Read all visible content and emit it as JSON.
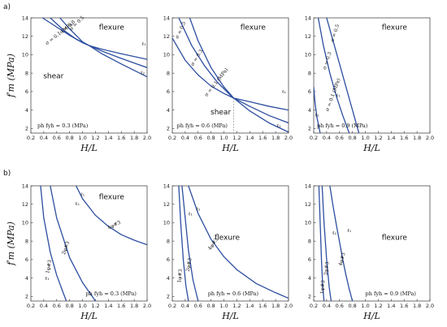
{
  "figure": {
    "row_labels": [
      "a)",
      "b)"
    ],
    "ylabel": "f′m (MPa)",
    "xlabel": "H/L",
    "xticks": [
      0.2,
      0.4,
      0.6,
      0.8,
      1.0,
      1.2,
      1.4,
      1.6,
      1.8,
      2.0
    ],
    "yticks": [
      2,
      4,
      6,
      8,
      10,
      12,
      14
    ]
  },
  "chart_data": [
    {
      "type": "line",
      "row": "a",
      "col": 0,
      "xlim": [
        0.2,
        2.0
      ],
      "ylim": [
        1.5,
        14
      ],
      "annotation": "ph fyh = 0.3 (MPa)",
      "regions": [
        {
          "text": "flexure",
          "x": 1.45,
          "y": 13.0
        },
        {
          "text": "shear",
          "x": 0.55,
          "y": 7.7
        }
      ],
      "series": [
        {
          "name": "σ = 0.1 (MPa)",
          "x": [
            0.38,
            0.6,
            0.8,
            1.0,
            1.1,
            1.3,
            1.6,
            2.0
          ],
          "y": [
            14.0,
            13.0,
            12.1,
            11.3,
            11.0,
            10.6,
            10.1,
            9.5
          ]
        },
        {
          "name": "σ = 0.3",
          "x": [
            0.5,
            0.7,
            0.9,
            1.1,
            1.3,
            1.6,
            2.0
          ],
          "y": [
            14.0,
            12.7,
            11.7,
            11.0,
            10.4,
            9.6,
            8.6
          ]
        },
        {
          "name": "σ = 0.5",
          "x": [
            0.65,
            0.8,
            1.0,
            1.1,
            1.3,
            1.6,
            2.0
          ],
          "y": [
            14.0,
            12.8,
            11.4,
            11.0,
            10.1,
            9.0,
            7.6
          ]
        }
      ],
      "marks": [
        "ℓ₁",
        "ℓ₂"
      ]
    },
    {
      "type": "line",
      "row": "a",
      "col": 1,
      "xlim": [
        0.2,
        2.0
      ],
      "ylim": [
        1.5,
        14
      ],
      "annotation": "ph fyh = 0.6 (MPa)",
      "regions": [
        {
          "text": "flexure",
          "x": 1.45,
          "y": 13.0
        },
        {
          "text": "shear",
          "x": 0.95,
          "y": 3.8
        }
      ],
      "series": [
        {
          "name": "σ = 0.1 (MPa)",
          "x": [
            0.2,
            0.4,
            0.6,
            0.8,
            1.0,
            1.15,
            1.4,
            1.7,
            2.0
          ],
          "y": [
            11.8,
            9.4,
            7.8,
            6.6,
            5.8,
            5.3,
            4.9,
            4.4,
            4.0
          ]
        },
        {
          "name": "σ = 0.3",
          "x": [
            0.3,
            0.5,
            0.7,
            0.9,
            1.1,
            1.15,
            1.4,
            1.7,
            2.0
          ],
          "y": [
            14.0,
            11.0,
            8.8,
            7.0,
            5.6,
            5.3,
            4.4,
            3.4,
            2.6
          ]
        },
        {
          "name": "σ = 0.5",
          "x": [
            0.47,
            0.6,
            0.8,
            1.0,
            1.15,
            1.4,
            1.7,
            2.0
          ],
          "y": [
            14.0,
            11.5,
            8.6,
            6.5,
            5.3,
            3.9,
            2.6,
            1.6
          ]
        }
      ],
      "marks": [
        "ℓ₁",
        "ℓ₂"
      ],
      "guide_x": 1.15
    },
    {
      "type": "line",
      "row": "a",
      "col": 2,
      "xlim": [
        0.2,
        2.0
      ],
      "ylim": [
        1.5,
        14
      ],
      "annotation": "ph fyh = 0.9 (MPa)",
      "regions": [
        {
          "text": "flexure",
          "x": 1.45,
          "y": 13.0
        }
      ],
      "series": [
        {
          "name": "σ = 0.1 (MPa)",
          "x": [
            0.2,
            0.22,
            0.25,
            0.3
          ],
          "y": [
            6.5,
            4.8,
            3.2,
            1.5
          ]
        },
        {
          "name": "σ = 0.3",
          "x": [
            0.27,
            0.35,
            0.45,
            0.55,
            0.65,
            0.75
          ],
          "y": [
            14.0,
            11.0,
            8.0,
            5.5,
            3.4,
            1.5
          ]
        },
        {
          "name": "σ = 0.5",
          "x": [
            0.4,
            0.5,
            0.6,
            0.7,
            0.8,
            0.9
          ],
          "y": [
            14.0,
            11.5,
            9.0,
            6.5,
            4.0,
            1.5
          ]
        }
      ],
      "marks": [
        "ℓ₁",
        "ℓ₂"
      ]
    },
    {
      "type": "line",
      "row": "b",
      "col": 0,
      "xlim": [
        0.2,
        2.0
      ],
      "ylim": [
        1.5,
        14
      ],
      "annotation": "ph fyh = 0.3 (MPa)",
      "regions": [
        {
          "text": "flexure",
          "x": 1.45,
          "y": 12.8
        }
      ],
      "series": [
        {
          "name": "1φ#3",
          "x": [
            0.35,
            0.4,
            0.5,
            0.6,
            0.7,
            0.75
          ],
          "y": [
            14.0,
            10.5,
            6.8,
            4.3,
            2.4,
            1.5
          ]
        },
        {
          "name": "2φ#3",
          "x": [
            0.5,
            0.6,
            0.8,
            1.0,
            1.2
          ],
          "y": [
            14.0,
            10.5,
            6.2,
            3.5,
            1.5
          ]
        },
        {
          "name": "4φ#3",
          "x": [
            0.9,
            1.0,
            1.2,
            1.4,
            1.6,
            1.8,
            2.0
          ],
          "y": [
            14.0,
            12.6,
            10.8,
            9.6,
            8.7,
            8.1,
            7.6
          ]
        }
      ],
      "marks": [
        "ℓ₁",
        "ℓ₂",
        "ℓ₁"
      ]
    },
    {
      "type": "line",
      "row": "b",
      "col": 1,
      "xlim": [
        0.2,
        2.0
      ],
      "ylim": [
        1.5,
        14
      ],
      "annotation": "ph fyh = 0.6 (MPa)",
      "regions": [
        {
          "text": "flexure",
          "x": 1.05,
          "y": 8.4
        }
      ],
      "series": [
        {
          "name": "1φ#3",
          "x": [
            0.3,
            0.33,
            0.37,
            0.41,
            0.45
          ],
          "y": [
            14.0,
            10.0,
            6.0,
            3.2,
            1.5
          ]
        },
        {
          "name": "2φ#3",
          "x": [
            0.35,
            0.4,
            0.45,
            0.52,
            0.6
          ],
          "y": [
            14.0,
            10.5,
            7.0,
            3.8,
            1.5
          ]
        },
        {
          "name": "4φ#3",
          "x": [
            0.45,
            0.6,
            0.8,
            1.0,
            1.2,
            1.5,
            1.8,
            2.0
          ],
          "y": [
            14.0,
            11.0,
            8.2,
            6.3,
            4.9,
            3.4,
            2.4,
            1.8
          ]
        }
      ],
      "marks": [
        "ℓ₁",
        "ℓ₂"
      ]
    },
    {
      "type": "line",
      "row": "b",
      "col": 2,
      "xlim": [
        0.2,
        2.0
      ],
      "ylim": [
        1.5,
        14
      ],
      "annotation": "ph fyh = 0.9 (MPa)",
      "regions": [
        {
          "text": "flexure",
          "x": 1.45,
          "y": 8.4
        }
      ],
      "series": [
        {
          "name": "1φ#3",
          "x": [
            0.28,
            0.3,
            0.32,
            0.34,
            0.36
          ],
          "y": [
            14.0,
            10.0,
            6.0,
            3.0,
            1.5
          ]
        },
        {
          "name": "2φ#3",
          "x": [
            0.33,
            0.36,
            0.4,
            0.44,
            0.47
          ],
          "y": [
            14.0,
            10.0,
            6.0,
            3.0,
            1.5
          ]
        },
        {
          "name": "4φ#3",
          "x": [
            0.45,
            0.5,
            0.55,
            0.6,
            0.65,
            0.7,
            0.75,
            0.8
          ],
          "y": [
            14.0,
            11.8,
            9.8,
            7.9,
            6.0,
            4.3,
            2.8,
            1.5
          ]
        }
      ],
      "marks": [
        "ℓ₁",
        "ℓ₂"
      ]
    }
  ]
}
